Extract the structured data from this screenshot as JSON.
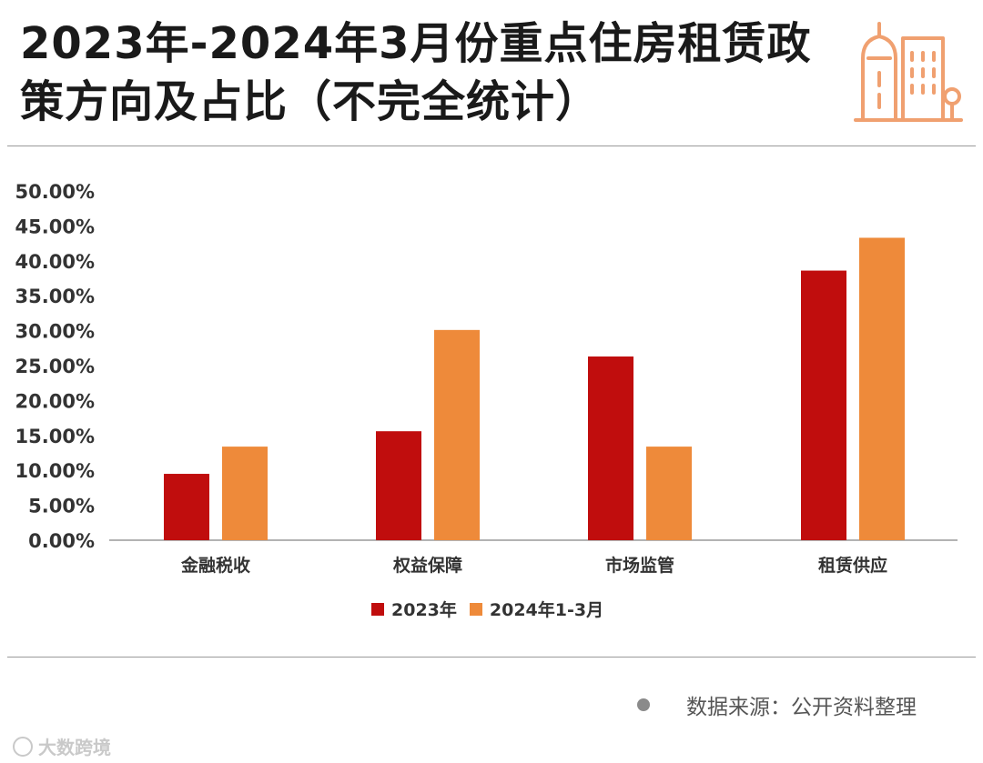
{
  "title": "2023年-2024年3月份重点住房租赁政策方向及占比（不完全统计）",
  "colors": {
    "series_2023": "#c00d0d",
    "series_2024": "#ee8a3a",
    "icon": "#f0a070",
    "axis": "#9a9a9a"
  },
  "icon_name": "building-icon",
  "chart_data": {
    "type": "bar",
    "title": "2023年-2024年3月份重点住房租赁政策方向及占比（不完全统计）",
    "categories": [
      "金融税收",
      "权益保障",
      "市场监管",
      "租赁供应"
    ],
    "series": [
      {
        "name": "2023年",
        "values": [
          9.5,
          15.6,
          26.3,
          38.6
        ]
      },
      {
        "name": "2024年1-3月",
        "values": [
          13.4,
          30.1,
          13.4,
          43.3
        ]
      }
    ],
    "y_ticks": [
      "0.00%",
      "5.00%",
      "10.00%",
      "15.00%",
      "20.00%",
      "25.00%",
      "30.00%",
      "35.00%",
      "40.00%",
      "45.00%",
      "50.00%"
    ],
    "ylim": [
      0,
      50
    ],
    "xlabel": "",
    "ylabel": "",
    "legend_position": "bottom"
  },
  "legend": {
    "item_2023": "2023年",
    "item_2024": "2024年1-3月"
  },
  "source": {
    "text": "数据来源：公开资料整理"
  },
  "watermark": {
    "text": "大数跨境"
  }
}
